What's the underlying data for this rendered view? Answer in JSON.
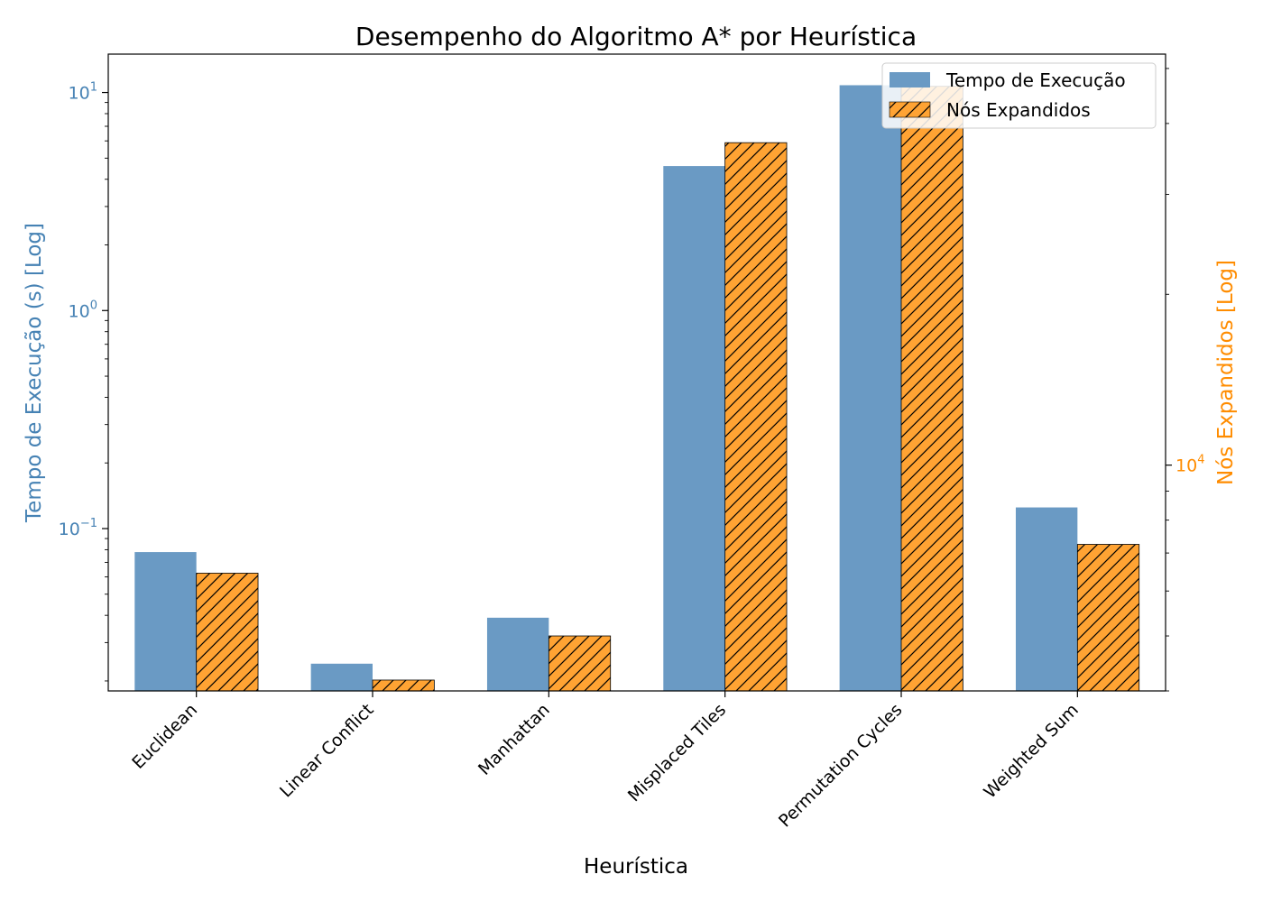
{
  "chart_data": {
    "type": "bar",
    "title": "Desempenho do Algoritmo A* por Heurística",
    "xlabel": "Heurística",
    "ylabel": "Tempo de Execução (s) [Log]",
    "ylabel_right": "Nós Expandidos [Log]",
    "categories": [
      "Euclidean",
      "Linear Conflict",
      "Manhattan",
      "Misplaced Tiles",
      "Permutation Cycles",
      "Weighted Sum"
    ],
    "series": [
      {
        "name": "Tempo de Execução",
        "axis": "left",
        "color": "#6a9ac4",
        "values": [
          0.078,
          0.024,
          0.039,
          4.6,
          10.8,
          0.125
        ]
      },
      {
        "name": "Nós Expandidos",
        "axis": "right",
        "color": "#ffa333",
        "hatch": "diagonal",
        "values": [
          6450,
          4180,
          5000,
          37000,
          46500,
          7250
        ]
      }
    ],
    "y_left": {
      "scale": "log",
      "ylim": [
        0.018,
        15
      ],
      "major_ticks": [
        {
          "value": 0.1,
          "base": "10",
          "exp": "−1"
        },
        {
          "value": 1,
          "base": "10",
          "exp": "0"
        },
        {
          "value": 10,
          "base": "10",
          "exp": "1"
        }
      ],
      "color": "#4682b4"
    },
    "y_right": {
      "scale": "log",
      "ylim": [
        4000,
        53000
      ],
      "major_ticks": [
        {
          "value": 10000,
          "base": "10",
          "exp": "4"
        }
      ],
      "color": "#ff8c00"
    },
    "legend": {
      "position": "top-right",
      "entries": [
        "Tempo de Execução",
        "Nós Expandidos"
      ]
    },
    "grid": false
  }
}
